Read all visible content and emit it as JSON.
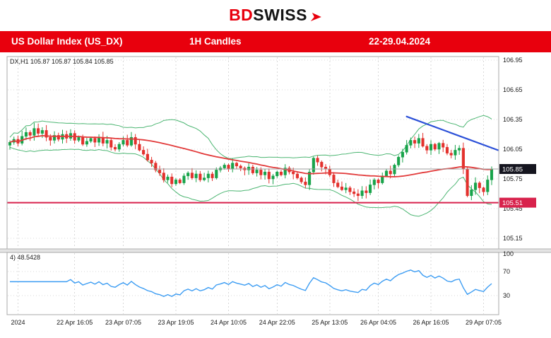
{
  "header": {
    "logo_bd": "BD",
    "logo_swiss": "SWISS"
  },
  "banner": {
    "bg_color": "#e8000d",
    "title": "US Dollar Index (US_DX)",
    "timeframe": "1H Candles",
    "period": "22-29.04.2024"
  },
  "chart_overlay": {
    "symbol_ohlc": "DX,H1 105.87 105.87 105.84 105.85",
    "rsi_label": "4) 48.5428"
  },
  "chart_data": {
    "type": "candlestick",
    "title": "US Dollar Index (US_DX) 1H Candles 22-29.04.2024",
    "price_axis": {
      "ticks": [
        106.95,
        106.65,
        106.35,
        106.05,
        105.75,
        105.45,
        105.15
      ],
      "current_price": 105.85,
      "support_price": 105.51,
      "range": [
        105.05,
        107.0
      ]
    },
    "rsi_axis": {
      "ticks": [
        100,
        70,
        30
      ],
      "range": [
        0,
        100
      ],
      "current": 48.5428
    },
    "time_ticks": [
      {
        "label": "2024",
        "index": 2
      },
      {
        "label": "22 Apr 16:05",
        "index": 16
      },
      {
        "label": "23 Apr 07:05",
        "index": 28
      },
      {
        "label": "23 Apr 19:05",
        "index": 41
      },
      {
        "label": "24 Apr 10:05",
        "index": 54
      },
      {
        "label": "24 Apr 22:05",
        "index": 66
      },
      {
        "label": "25 Apr 13:05",
        "index": 79
      },
      {
        "label": "26 Apr 04:05",
        "index": 91
      },
      {
        "label": "26 Apr 16:05",
        "index": 104
      },
      {
        "label": "29 Apr 07:05",
        "index": 117
      }
    ],
    "candles": {
      "first_open": 106.09,
      "closes": [
        106.12,
        106.15,
        106.11,
        106.18,
        106.22,
        106.19,
        106.26,
        106.21,
        106.24,
        106.17,
        106.14,
        106.19,
        106.15,
        106.2,
        106.16,
        106.21,
        106.14,
        106.17,
        106.1,
        106.13,
        106.16,
        106.12,
        106.17,
        106.11,
        106.14,
        106.07,
        106.05,
        106.1,
        106.14,
        106.09,
        106.17,
        106.1,
        106.04,
        106.0,
        105.94,
        105.91,
        105.84,
        105.81,
        105.74,
        105.77,
        105.7,
        105.74,
        105.71,
        105.78,
        105.81,
        105.76,
        105.8,
        105.74,
        105.76,
        105.8,
        105.76,
        105.84,
        105.86,
        105.89,
        105.85,
        105.91,
        105.88,
        105.86,
        105.84,
        105.87,
        105.81,
        105.84,
        105.79,
        105.82,
        105.75,
        105.78,
        105.82,
        105.79,
        105.86,
        105.82,
        105.8,
        105.76,
        105.72,
        105.69,
        105.82,
        105.96,
        105.92,
        105.87,
        105.85,
        105.79,
        105.71,
        105.67,
        105.64,
        105.66,
        105.62,
        105.6,
        105.58,
        105.63,
        105.61,
        105.69,
        105.74,
        105.71,
        105.78,
        105.83,
        105.8,
        105.89,
        105.97,
        106.02,
        106.09,
        106.14,
        106.11,
        106.16,
        106.08,
        106.04,
        106.1,
        106.05,
        106.11,
        106.07,
        106.01,
        105.99,
        106.04,
        106.06,
        105.85,
        105.58,
        105.64,
        105.71,
        105.66,
        105.62,
        105.74,
        105.85
      ]
    },
    "indicators": {
      "bollinger_period": 20,
      "ma_period": 40,
      "rsi_period": 14
    },
    "trendline": {
      "from_index": 98,
      "from_price": 106.38,
      "to_index": 121,
      "to_price": 106.04
    },
    "colors": {
      "up": "#18a34a",
      "down": "#e3312d",
      "bollinger": "#4db673",
      "ma": "#e23a3a",
      "rsi": "#3d9df3",
      "trend": "#2b50d8",
      "support": "#d8224c",
      "grid": "#d8d8d8",
      "badge_current_bg": "#15151f",
      "badge_support_bg": "#d8224c",
      "pane_border": "#a8a8a8"
    }
  }
}
